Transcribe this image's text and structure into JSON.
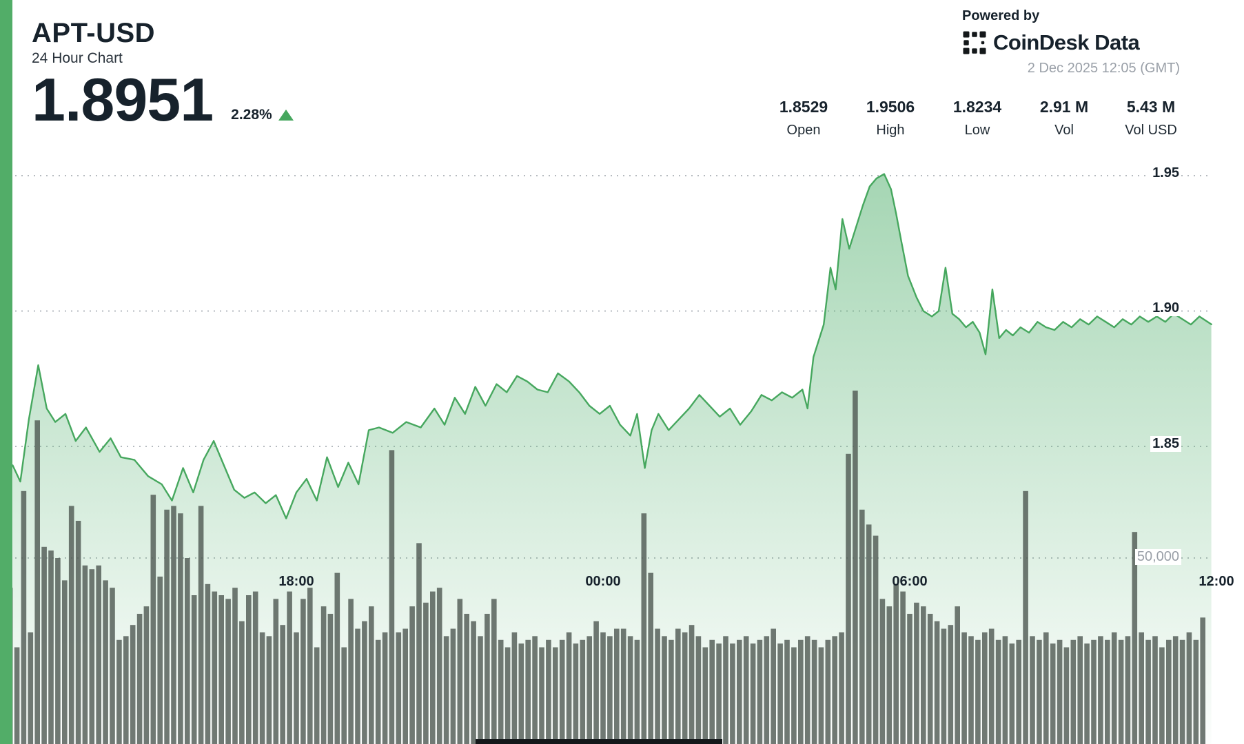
{
  "header": {
    "symbol": "APT-USD",
    "subtitle": "24 Hour Chart",
    "price": "1.8951",
    "change_percent": "2.28%",
    "change_direction": "up"
  },
  "attribution": {
    "powered_by": "Powered by",
    "brand": "CoinDesk Data",
    "timestamp": "2 Dec 2025 12:05 (GMT)"
  },
  "stats": [
    {
      "value": "1.8529",
      "label": "Open"
    },
    {
      "value": "1.9506",
      "label": "High"
    },
    {
      "value": "1.8234",
      "label": "Low"
    },
    {
      "value": "2.91 M",
      "label": "Vol"
    },
    {
      "value": "5.43 M",
      "label": "Vol USD"
    }
  ],
  "colors": {
    "accent_green": "#52ad68",
    "line_green": "#46a75e",
    "area_green": "#57b272",
    "volume_bar": "#4e5751",
    "dark_text": "#17222c",
    "muted_text": "#9aa0a8",
    "grid": "#abb0b6"
  },
  "chart_data": {
    "type": "area",
    "title": "APT-USD 24 Hour Chart",
    "legend": "off",
    "grid": "dotted horizontal",
    "x_axis": {
      "labels": [
        "18:00",
        "00:00",
        "06:00",
        "12:00"
      ],
      "label_minutes": [
        360,
        720,
        1080,
        1440
      ],
      "start_label": "12:00 GMT previous day",
      "span_minutes": 1440
    },
    "y_axis_price": {
      "ticks": [
        1.95,
        1.9,
        1.85
      ],
      "labels": [
        "1.95",
        "1.90",
        "1.85"
      ],
      "range_visible": [
        1.82,
        1.96
      ]
    },
    "y_axis_volume": {
      "ticks": [
        50000
      ],
      "labels": [
        "50,000"
      ]
    },
    "price_series": {
      "name": "APT-USD price",
      "x_unit": "minutes since 12:00 GMT (previous day)",
      "points": [
        [
          27,
          1.843
        ],
        [
          36,
          1.837
        ],
        [
          46,
          1.86
        ],
        [
          57,
          1.88
        ],
        [
          67,
          1.864
        ],
        [
          77,
          1.859
        ],
        [
          89,
          1.862
        ],
        [
          101,
          1.852
        ],
        [
          113,
          1.857
        ],
        [
          129,
          1.848
        ],
        [
          142,
          1.853
        ],
        [
          154,
          1.846
        ],
        [
          170,
          1.845
        ],
        [
          186,
          1.839
        ],
        [
          202,
          1.836
        ],
        [
          214,
          1.83
        ],
        [
          227,
          1.842
        ],
        [
          239,
          1.833
        ],
        [
          251,
          1.845
        ],
        [
          263,
          1.852
        ],
        [
          275,
          1.843
        ],
        [
          287,
          1.834
        ],
        [
          299,
          1.831
        ],
        [
          311,
          1.833
        ],
        [
          324,
          1.829
        ],
        [
          336,
          1.832
        ],
        [
          348,
          1.8234
        ],
        [
          360,
          1.833
        ],
        [
          372,
          1.838
        ],
        [
          384,
          1.83
        ],
        [
          396,
          1.846
        ],
        [
          409,
          1.835
        ],
        [
          421,
          1.844
        ],
        [
          433,
          1.836
        ],
        [
          445,
          1.856
        ],
        [
          457,
          1.857
        ],
        [
          473,
          1.855
        ],
        [
          489,
          1.859
        ],
        [
          506,
          1.857
        ],
        [
          522,
          1.864
        ],
        [
          534,
          1.858
        ],
        [
          546,
          1.868
        ],
        [
          558,
          1.862
        ],
        [
          570,
          1.872
        ],
        [
          582,
          1.865
        ],
        [
          595,
          1.873
        ],
        [
          607,
          1.87
        ],
        [
          619,
          1.876
        ],
        [
          631,
          1.874
        ],
        [
          643,
          1.871
        ],
        [
          655,
          1.87
        ],
        [
          667,
          1.877
        ],
        [
          680,
          1.874
        ],
        [
          692,
          1.87
        ],
        [
          704,
          1.865
        ],
        [
          716,
          1.862
        ],
        [
          728,
          1.865
        ],
        [
          740,
          1.858
        ],
        [
          752,
          1.854
        ],
        [
          760,
          1.862
        ],
        [
          769,
          1.842
        ],
        [
          777,
          1.856
        ],
        [
          785,
          1.862
        ],
        [
          797,
          1.856
        ],
        [
          809,
          1.86
        ],
        [
          821,
          1.864
        ],
        [
          833,
          1.869
        ],
        [
          845,
          1.865
        ],
        [
          857,
          1.861
        ],
        [
          869,
          1.864
        ],
        [
          881,
          1.858
        ],
        [
          894,
          1.863
        ],
        [
          906,
          1.869
        ],
        [
          918,
          1.867
        ],
        [
          930,
          1.87
        ],
        [
          942,
          1.868
        ],
        [
          954,
          1.871
        ],
        [
          960,
          1.864
        ],
        [
          967,
          1.883
        ],
        [
          979,
          1.895
        ],
        [
          987,
          1.916
        ],
        [
          993,
          1.908
        ],
        [
          1001,
          1.934
        ],
        [
          1009,
          1.923
        ],
        [
          1017,
          1.931
        ],
        [
          1025,
          1.939
        ],
        [
          1033,
          1.946
        ],
        [
          1041,
          1.949
        ],
        [
          1050,
          1.9506
        ],
        [
          1058,
          1.945
        ],
        [
          1064,
          1.936
        ],
        [
          1070,
          1.926
        ],
        [
          1078,
          1.913
        ],
        [
          1088,
          1.905
        ],
        [
          1096,
          1.9
        ],
        [
          1106,
          1.898
        ],
        [
          1114,
          1.9
        ],
        [
          1122,
          1.916
        ],
        [
          1130,
          1.899
        ],
        [
          1138,
          1.897
        ],
        [
          1146,
          1.894
        ],
        [
          1154,
          1.896
        ],
        [
          1162,
          1.892
        ],
        [
          1169,
          1.884
        ],
        [
          1177,
          1.908
        ],
        [
          1185,
          1.89
        ],
        [
          1193,
          1.893
        ],
        [
          1201,
          1.891
        ],
        [
          1210,
          1.894
        ],
        [
          1220,
          1.892
        ],
        [
          1230,
          1.896
        ],
        [
          1240,
          1.894
        ],
        [
          1250,
          1.893
        ],
        [
          1260,
          1.896
        ],
        [
          1270,
          1.894
        ],
        [
          1280,
          1.897
        ],
        [
          1290,
          1.895
        ],
        [
          1300,
          1.898
        ],
        [
          1310,
          1.896
        ],
        [
          1320,
          1.894
        ],
        [
          1330,
          1.897
        ],
        [
          1340,
          1.895
        ],
        [
          1350,
          1.898
        ],
        [
          1360,
          1.896
        ],
        [
          1370,
          1.898
        ],
        [
          1380,
          1.896
        ],
        [
          1390,
          1.899
        ],
        [
          1400,
          1.897
        ],
        [
          1410,
          1.895
        ],
        [
          1420,
          1.898
        ],
        [
          1434,
          1.8951
        ]
      ]
    },
    "volume_series": {
      "name": "Volume",
      "x_unit": "minutes since 12:00 GMT (previous day)",
      "start_minute": 24,
      "bar_minutes": 8,
      "unit": "thousands",
      "values": [
        42,
        26,
        68,
        30,
        87,
        53,
        52,
        50,
        44,
        64,
        60,
        48,
        47,
        48,
        44,
        42,
        28,
        29,
        32,
        35,
        37,
        67,
        45,
        63,
        64,
        62,
        50,
        40,
        64,
        43,
        41,
        40,
        39,
        42,
        33,
        40,
        41,
        30,
        29,
        39,
        32,
        41,
        30,
        39,
        42,
        26,
        37,
        35,
        46,
        26,
        39,
        31,
        33,
        37,
        28,
        30,
        79,
        30,
        31,
        37,
        54,
        38,
        41,
        42,
        29,
        31,
        39,
        35,
        33,
        29,
        35,
        39,
        28,
        26,
        30,
        27,
        28,
        29,
        26,
        28,
        26,
        28,
        30,
        27,
        28,
        29,
        33,
        30,
        29,
        31,
        31,
        29,
        28,
        62,
        46,
        31,
        29,
        28,
        31,
        30,
        32,
        29,
        26,
        28,
        27,
        29,
        27,
        28,
        29,
        27,
        28,
        29,
        31,
        27,
        28,
        26,
        28,
        29,
        28,
        26,
        28,
        29,
        30,
        78,
        95,
        63,
        59,
        56,
        39,
        37,
        43,
        41,
        35,
        38,
        37,
        35,
        33,
        31,
        32,
        37,
        30,
        29,
        28,
        30,
        31,
        28,
        29,
        27,
        28,
        68,
        29,
        28,
        30,
        27,
        28,
        26,
        28,
        29,
        27,
        28,
        29,
        28,
        30,
        28,
        29,
        57,
        30,
        28,
        29,
        26,
        28,
        29,
        28,
        30,
        28,
        34
      ]
    }
  }
}
